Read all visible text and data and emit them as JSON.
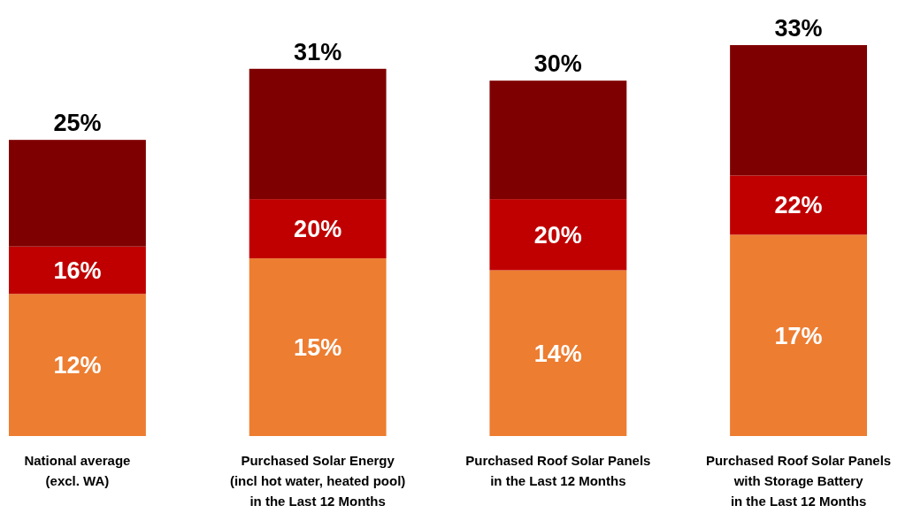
{
  "chart_data": {
    "type": "bar",
    "stacked": true,
    "categories": [
      "National average\n(excl. WA)",
      "Purchased Solar Energy\n(incl hot water, heated pool)\nin the Last 12 Months",
      "Purchased Roof Solar Panels\nin the Last 12 Months",
      "Purchased Roof Solar Panels\nwith Storage Battery\nin the Last 12 Months"
    ],
    "series": [
      {
        "color": "#ed7d31",
        "values": [
          12,
          15,
          14,
          17
        ],
        "value_labels": [
          "12%",
          "15%",
          "14%",
          "17%"
        ]
      },
      {
        "color": "#c00000",
        "values": [
          4,
          5,
          6,
          5
        ]
      },
      {
        "color": "#7f0000",
        "values": [
          9,
          11,
          10,
          11
        ]
      }
    ],
    "totals": [
      "25%",
      "31%",
      "30%",
      "33%"
    ],
    "annotations": [
      {
        "text": "16%",
        "x": "National average\n(excl. WA)",
        "y": 16
      },
      {
        "text": "20%",
        "x": "Purchased Solar Energy\n(incl hot water, heated pool)\nin the Last 12 Months",
        "y": 20
      },
      {
        "text": "20%",
        "x": "Purchased Roof Solar Panels\nin the Last 12 Months",
        "y": 20
      },
      {
        "text": "22%",
        "x": "Purchased Roof Solar Panels\nwith Storage Battery\nin the Last 12 Months",
        "y": 22
      }
    ]
  }
}
